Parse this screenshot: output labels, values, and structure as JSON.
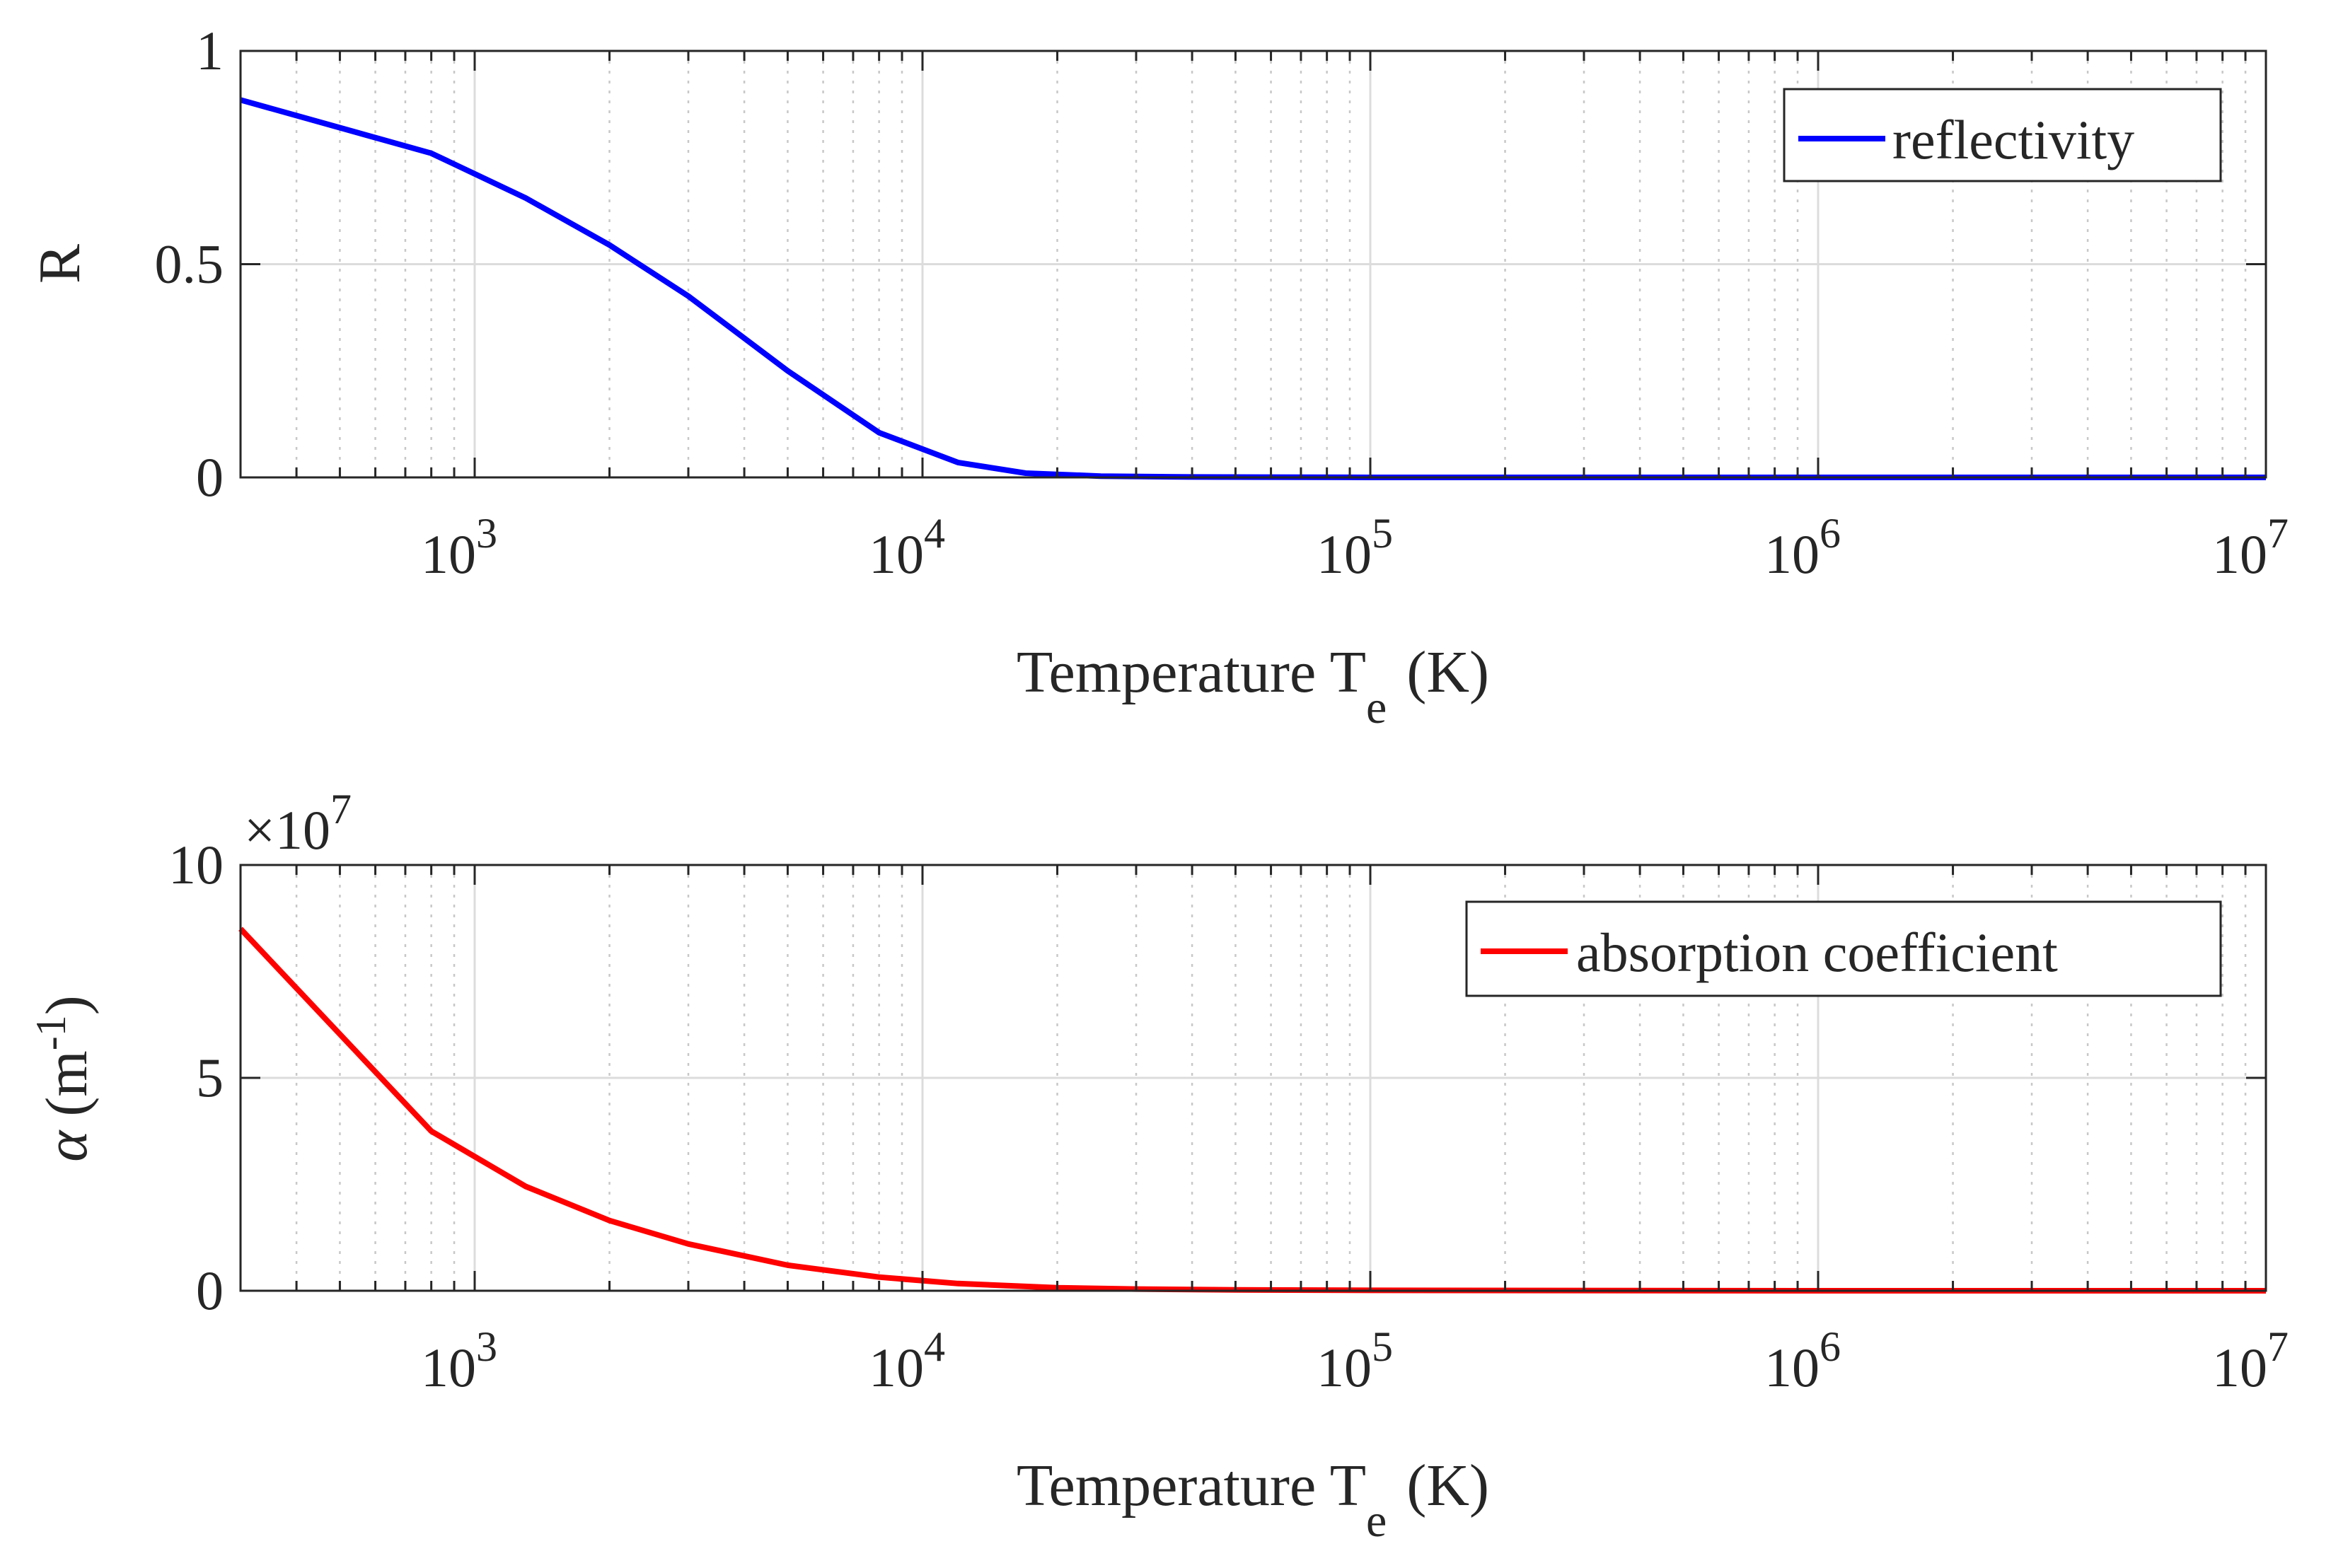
{
  "chart_data": [
    {
      "type": "line",
      "xscale": "log",
      "xlim": [
        300,
        10000000
      ],
      "ylim": [
        0,
        1
      ],
      "xticks": [
        1000,
        10000,
        100000,
        1000000,
        10000000
      ],
      "xtick_mantissa": "10",
      "xtick_exponents": [
        "3",
        "4",
        "5",
        "6",
        "7"
      ],
      "yticks": [
        "0",
        "0.5",
        "1"
      ],
      "xlabel": {
        "main": "Temperature T",
        "sub": "e",
        "unit": "(K)"
      },
      "ylabel": {
        "main": "R"
      },
      "legend": {
        "label": "reflectivity",
        "position": "top-right"
      },
      "grid": true,
      "series": [
        {
          "name": "reflectivity",
          "color": "#0000ff",
          "x": [
            300,
            800,
            1300,
            2000,
            3000,
            5000,
            8000,
            12000,
            17000,
            25000,
            40000,
            100000,
            1000000,
            10000000
          ],
          "y": [
            0.885,
            0.76,
            0.655,
            0.545,
            0.425,
            0.25,
            0.105,
            0.035,
            0.01,
            0.003,
            0.001,
            0.0,
            0.0,
            0.0
          ]
        }
      ]
    },
    {
      "type": "line",
      "xscale": "log",
      "xlim": [
        300,
        10000000
      ],
      "ylim": [
        0,
        10
      ],
      "xticks": [
        1000,
        10000,
        100000,
        1000000,
        10000000
      ],
      "xtick_mantissa": "10",
      "xtick_exponents": [
        "3",
        "4",
        "5",
        "6",
        "7"
      ],
      "yticks": [
        "0",
        "5",
        "10"
      ],
      "y_multiplier": {
        "base": "×10",
        "exponent": "7"
      },
      "xlabel": {
        "main": "Temperature T",
        "sub": "e",
        "unit": "(K)"
      },
      "ylabel": {
        "symbol": "α",
        "main": "(m",
        "sup": "-1",
        "close": ")"
      },
      "legend": {
        "label": "absorption coefficient",
        "position": "top-right"
      },
      "grid": true,
      "series": [
        {
          "name": "absorption coefficient",
          "color": "#ff0000",
          "x": [
            300,
            800,
            1300,
            2000,
            3000,
            5000,
            8000,
            12000,
            20000,
            30000,
            50000,
            100000,
            1000000,
            10000000
          ],
          "y": [
            8.5,
            3.75,
            2.45,
            1.65,
            1.1,
            0.6,
            0.32,
            0.17,
            0.07,
            0.04,
            0.02,
            0.01,
            0.0,
            0.0
          ]
        }
      ]
    }
  ]
}
